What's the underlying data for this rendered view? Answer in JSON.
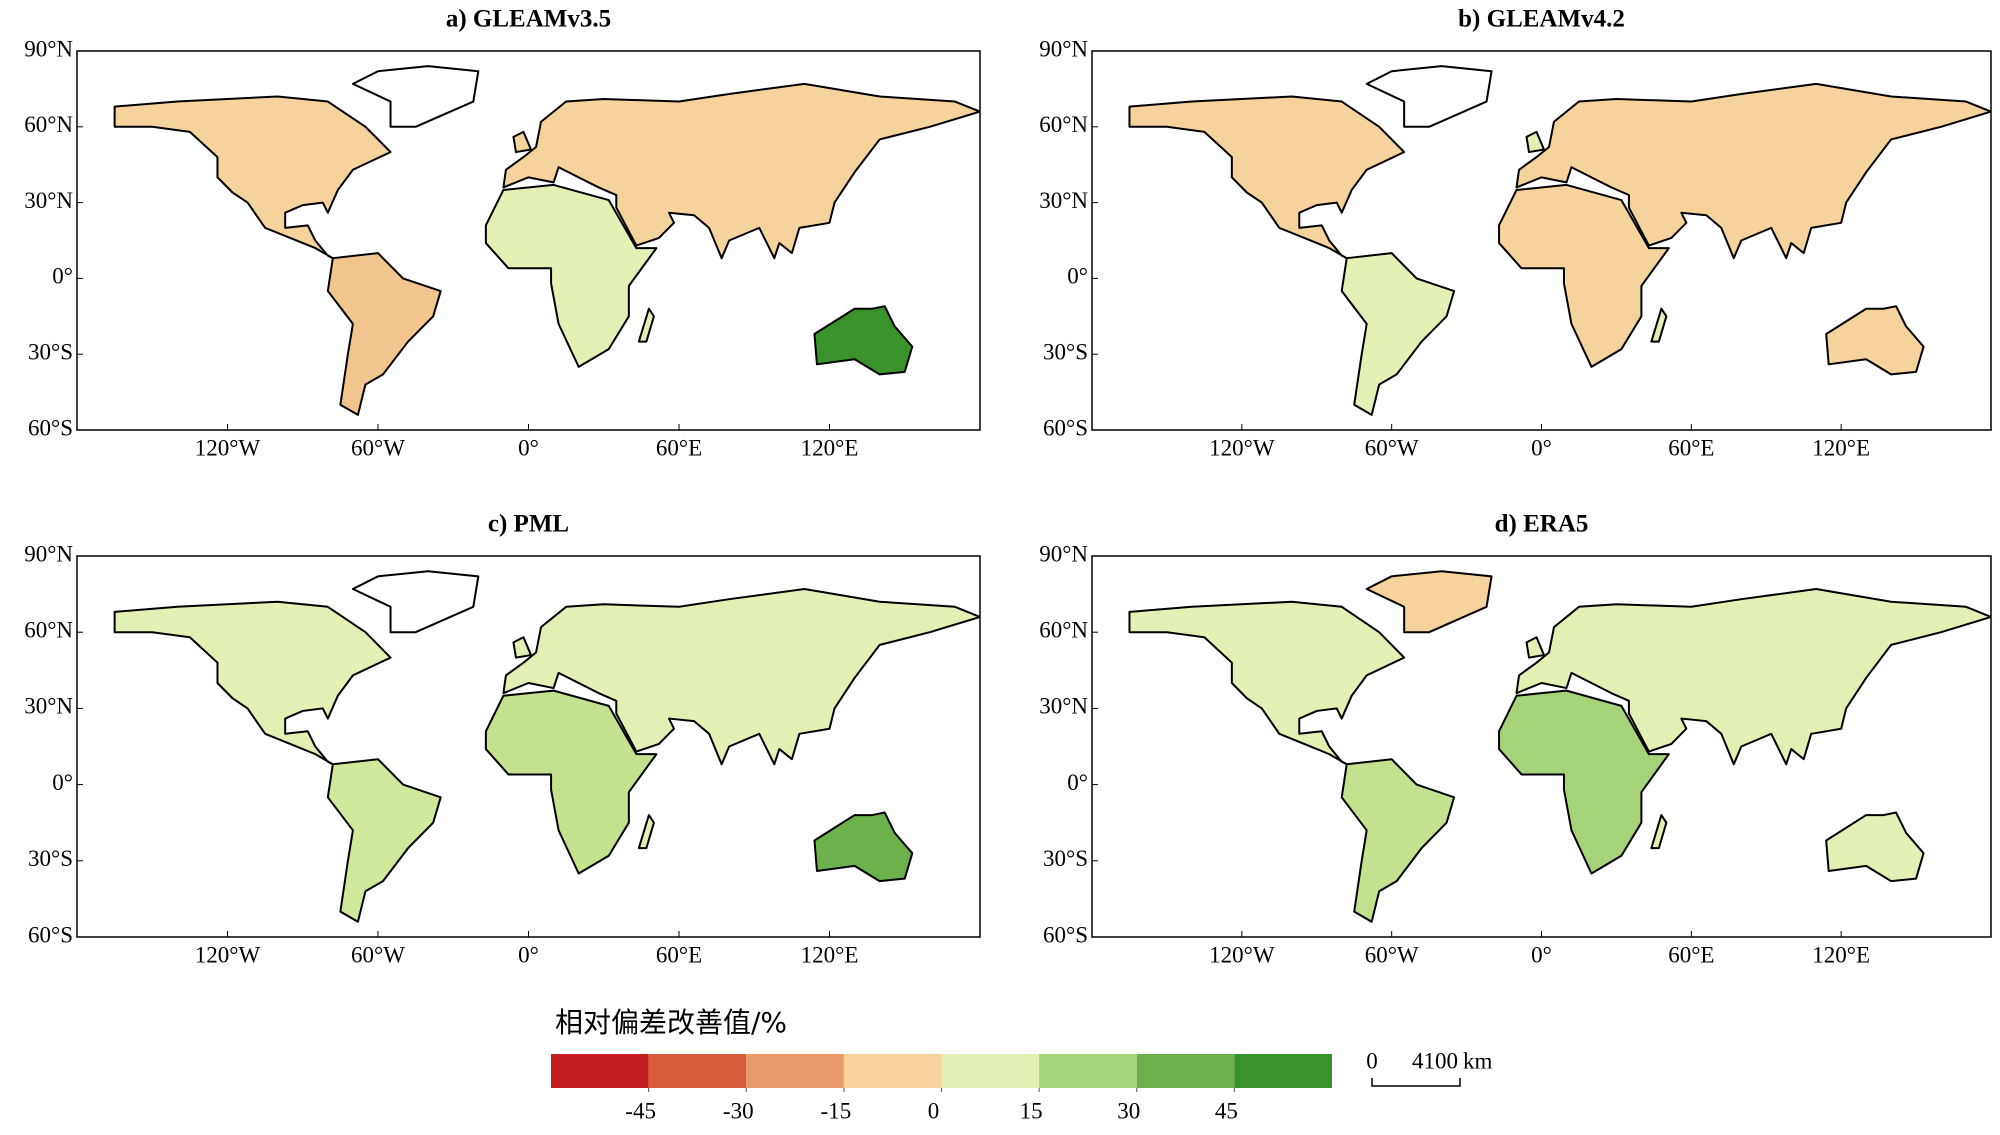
{
  "panels": [
    {
      "title": "a) GLEAMv3.5"
    },
    {
      "title": "b) GLEAMv4.2"
    },
    {
      "title": "c) PML"
    },
    {
      "title": "d) ERA5"
    }
  ],
  "extent": {
    "lon": [
      -180,
      180
    ],
    "lat": [
      -60,
      90
    ]
  },
  "lat_ticks": [
    {
      "value": 90,
      "label": "90°N"
    },
    {
      "value": 60,
      "label": "60°N"
    },
    {
      "value": 30,
      "label": "30°N"
    },
    {
      "value": 0,
      "label": "0°"
    },
    {
      "value": -30,
      "label": "30°S"
    },
    {
      "value": -60,
      "label": "60°S"
    }
  ],
  "lon_ticks": [
    {
      "value": -120,
      "label": "120°W"
    },
    {
      "value": -60,
      "label": "60°W"
    },
    {
      "value": 0,
      "label": "0°"
    },
    {
      "value": 60,
      "label": "60°E"
    },
    {
      "value": 120,
      "label": "120°E"
    }
  ],
  "colorbar": {
    "title": "相对偏差改善值/%",
    "colors": [
      "#c41e1e",
      "#d95b3a",
      "#e99a6a",
      "#f6d29c",
      "#e2f0b4",
      "#a6d27a",
      "#6cb24c",
      "#3a922a"
    ],
    "ticks": [
      -45,
      -30,
      -15,
      0,
      15,
      30,
      45
    ]
  },
  "scalebar": {
    "start": 0,
    "length": 4100,
    "unit": "km"
  }
}
